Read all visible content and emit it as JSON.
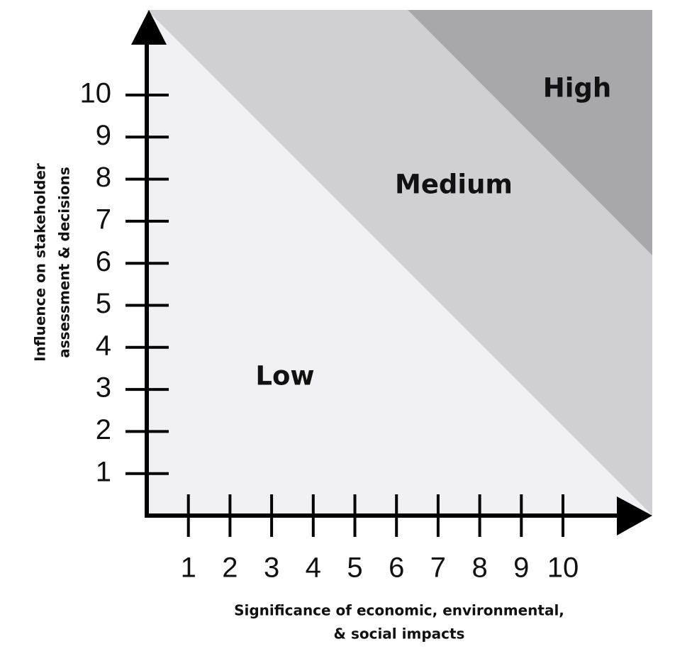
{
  "x_axis": {
    "label_lines": [
      "Significance of economic, environmental,",
      "& social impacts"
    ],
    "ticks": [
      1,
      2,
      3,
      4,
      5,
      6,
      7,
      8,
      9,
      10
    ]
  },
  "y_axis": {
    "label_lines": [
      "Influence on stakeholder",
      "assessment & decisions"
    ],
    "ticks": [
      1,
      2,
      3,
      4,
      5,
      6,
      7,
      8,
      9,
      10
    ]
  },
  "regions": [
    {
      "label": "Low"
    },
    {
      "label": "Medium"
    },
    {
      "label": "High"
    }
  ]
}
